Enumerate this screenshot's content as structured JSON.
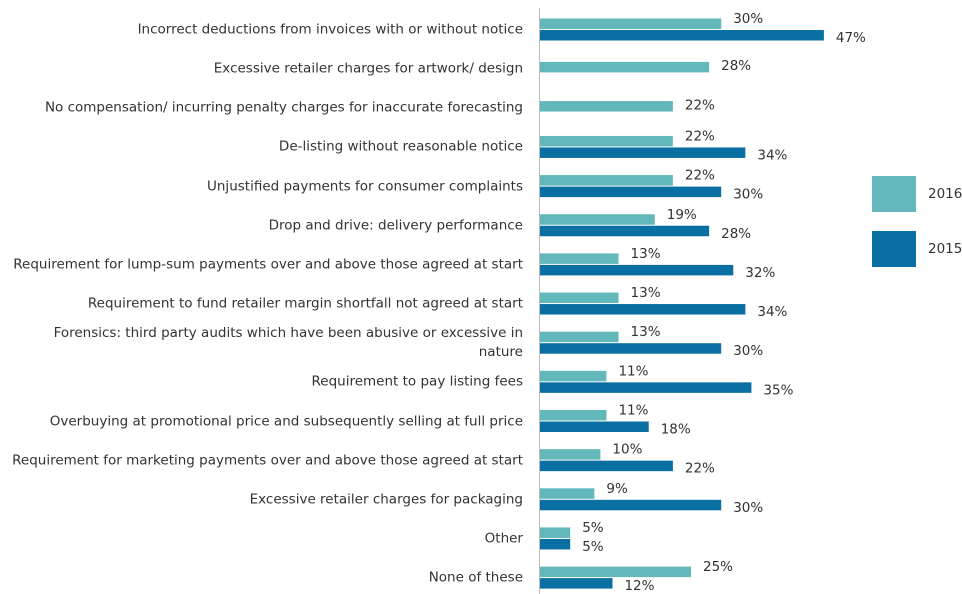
{
  "chart_data": {
    "type": "bar",
    "orientation": "horizontal",
    "categories": [
      "Incorrect deductions from invoices with or without notice",
      "Excessive retailer charges for artwork/ design",
      "No compensation/ incurring penalty charges for inaccurate forecasting",
      "De-listing without reasonable notice",
      "Unjustified payments for consumer complaints",
      "Drop and drive: delivery performance",
      "Requirement for lump-sum payments over and above those agreed at start",
      "Requirement to fund retailer margin shortfall not agreed at start",
      "Forensics: third party audits which have been abusive or excessive in\nnature",
      "Requirement to pay listing fees",
      "Overbuying at promotional price and subsequently selling at full price",
      "Requirement for marketing payments over and above those agreed at start",
      "Excessive retailer charges for packaging",
      "Other",
      "None of these"
    ],
    "series": [
      {
        "name": "2016",
        "color": "#62b8bb",
        "values": [
          30,
          28,
          22,
          22,
          22,
          19,
          13,
          13,
          13,
          11,
          11,
          10,
          9,
          5,
          25
        ],
        "value_labels": [
          "30%",
          "28%",
          "22%",
          "22%",
          "22%",
          "19%",
          "13%",
          "13%",
          "13%",
          "11%",
          "11%",
          "10%",
          "9%",
          "5%",
          "25%"
        ]
      },
      {
        "name": "2015",
        "color": "#0a6fa3",
        "values": [
          47,
          null,
          null,
          34,
          30,
          28,
          32,
          34,
          30,
          35,
          18,
          22,
          30,
          5,
          12
        ],
        "value_labels": [
          "47%",
          null,
          null,
          "34%",
          "30%",
          "28%",
          "32%",
          "34%",
          "30%",
          "35%",
          "18%",
          "22%",
          "30%",
          "5%",
          "12%"
        ]
      }
    ],
    "xlim": [
      0,
      70
    ],
    "legend": "right"
  }
}
